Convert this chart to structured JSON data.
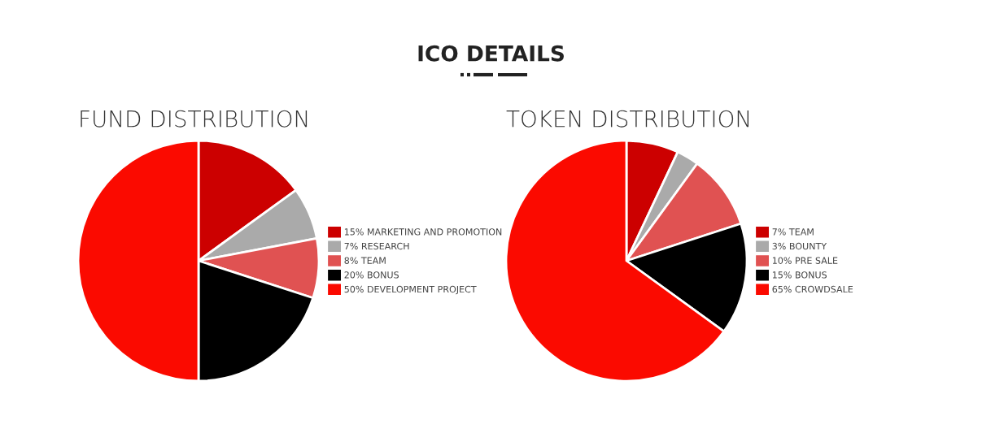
{
  "chart_data": [
    {
      "type": "pie",
      "title": "FUND DISTRIBUTION",
      "annotations": [
        "ICO DETAILS"
      ],
      "categories": [
        "15% MARKETING AND PROMOTION",
        "7% RESEARCH",
        "8% TEAM",
        "20% BONUS",
        "50% DEVELOPMENT PROJECT"
      ],
      "values": [
        15,
        7,
        8,
        20,
        50
      ],
      "colors": [
        "#cc0000",
        "#aaaaaa",
        "#e05252",
        "#000000",
        "#fb0a00"
      ],
      "legend": "right"
    },
    {
      "type": "pie",
      "title": "TOKEN DISTRIBUTION",
      "categories": [
        "7% TEAM",
        "3% BOUNTY",
        "10% PRE SALE",
        "15% BONUS",
        "65% CROWDSALE"
      ],
      "values": [
        7,
        3,
        10,
        15,
        65
      ],
      "colors": [
        "#cc0000",
        "#aaaaaa",
        "#e05252",
        "#000000",
        "#fb0a00"
      ],
      "legend": "right"
    }
  ]
}
